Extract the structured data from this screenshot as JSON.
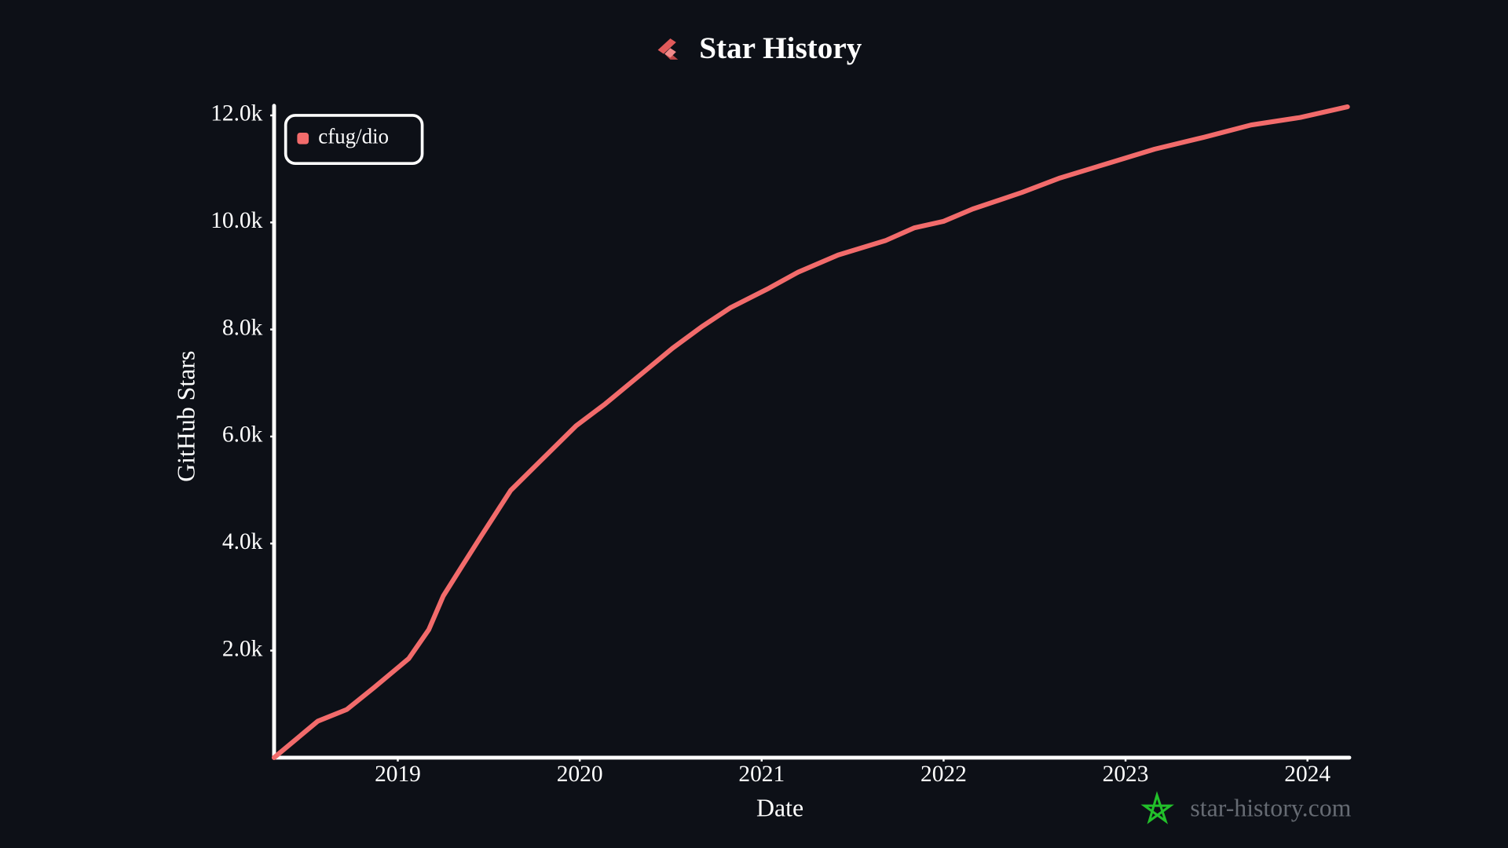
{
  "chart_data": {
    "type": "line",
    "title": "Star History",
    "x_label": "Date",
    "y_label": "GitHub Stars",
    "watermark": "star-history.com",
    "legend": "upper left",
    "x": [
      2018.32,
      2018.56,
      2018.72,
      2018.87,
      2019.06,
      2019.17,
      2019.25,
      2019.35,
      2019.46,
      2019.62,
      2019.78,
      2019.98,
      2020.14,
      2020.3,
      2020.51,
      2020.67,
      2020.83,
      2021.04,
      2021.2,
      2021.42,
      2021.68,
      2021.84,
      2022.0,
      2022.16,
      2022.43,
      2022.64,
      2022.9,
      2023.16,
      2023.43,
      2023.69,
      2023.96,
      2024.22
    ],
    "series": [
      {
        "name": "cfug/dio",
        "color": "#f26b6b",
        "values": [
          0,
          680,
          900,
          1310,
          1850,
          2390,
          3020,
          3560,
          4150,
          4990,
          5530,
          6200,
          6610,
          7060,
          7650,
          8050,
          8410,
          8770,
          9070,
          9390,
          9660,
          9900,
          10020,
          10250,
          10560,
          10830,
          11100,
          11370,
          11590,
          11820,
          11960,
          12160
        ]
      }
    ],
    "xlim": [
      2018.32,
      2024.23
    ],
    "xticks": [
      2019,
      2020,
      2021,
      2022,
      2023,
      2024
    ],
    "ylim": [
      0,
      12180
    ],
    "yticks": [
      {
        "value": 2000,
        "label": "2.0k"
      },
      {
        "value": 4000,
        "label": "4.0k"
      },
      {
        "value": 6000,
        "label": "6.0k"
      },
      {
        "value": 8000,
        "label": "8.0k"
      },
      {
        "value": 10000,
        "label": "10.0k"
      },
      {
        "value": 12000,
        "label": "12.0k"
      }
    ]
  }
}
